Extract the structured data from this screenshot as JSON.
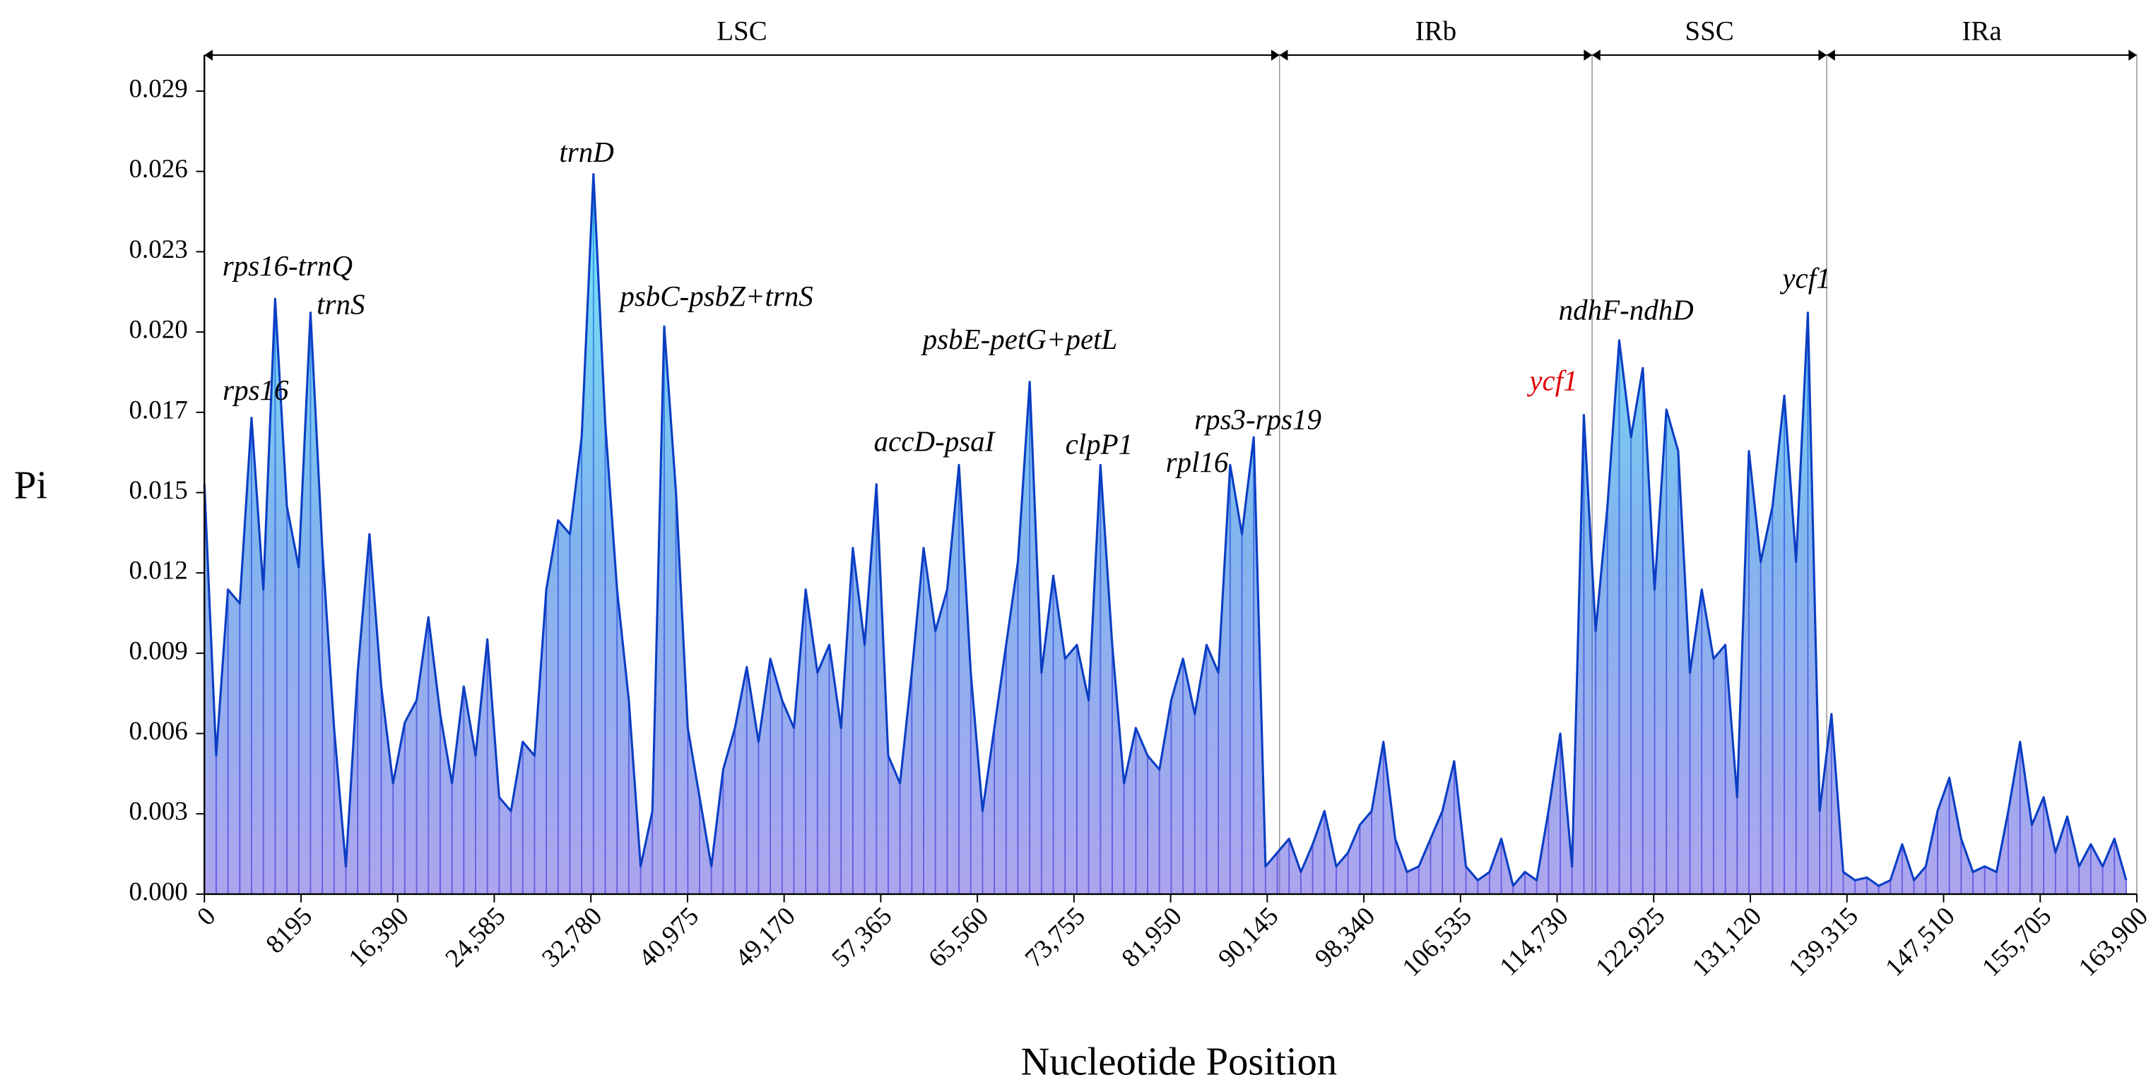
{
  "chart_data": {
    "type": "area",
    "xlabel": "Nucleotide Position",
    "ylabel": "Pi",
    "xlim": [
      0,
      163900
    ],
    "ylim": [
      0,
      0.0303
    ],
    "xticks": [
      0,
      8195,
      {
        "value": 16390,
        "label": "16,390"
      },
      {
        "value": 24585,
        "label": "24,585"
      },
      {
        "value": 32780,
        "label": "32,780"
      },
      {
        "value": 40975,
        "label": "40,975"
      },
      {
        "value": 49170,
        "label": "49,170"
      },
      {
        "value": 57365,
        "label": "57,365"
      },
      {
        "value": 65560,
        "label": "65,560"
      },
      {
        "value": 73755,
        "label": "73,755"
      },
      {
        "value": 81950,
        "label": "81,950"
      },
      {
        "value": 90145,
        "label": "90,145"
      },
      {
        "value": 98340,
        "label": "98,340"
      },
      {
        "value": 106535,
        "label": "106,535"
      },
      {
        "value": 114730,
        "label": "114,730"
      },
      {
        "value": 122925,
        "label": "122,925"
      },
      {
        "value": 131120,
        "label": "131,120"
      },
      {
        "value": 139315,
        "label": "139,315"
      },
      {
        "value": 147510,
        "label": "147,510"
      },
      {
        "value": 155705,
        "label": "155,705"
      },
      {
        "value": 163900,
        "label": "163,900"
      }
    ],
    "yticks": [
      {
        "value": 0,
        "label": "0.000"
      },
      {
        "value": 0.0029,
        "label": "0.003"
      },
      {
        "value": 0.0058,
        "label": "0.006"
      },
      {
        "value": 0.0087,
        "label": "0.009"
      },
      {
        "value": 0.0116,
        "label": "0.012"
      },
      {
        "value": 0.0145,
        "label": "0.015"
      },
      {
        "value": 0.0174,
        "label": "0.017"
      },
      {
        "value": 0.0203,
        "label": "0.020"
      },
      {
        "value": 0.0232,
        "label": "0.023"
      },
      {
        "value": 0.0261,
        "label": "0.026"
      },
      0.029
    ],
    "regions": [
      {
        "name": "LSC",
        "start": 0,
        "end": 91186
      },
      {
        "name": "IRb",
        "start": 91186,
        "end": 117700
      },
      {
        "name": "SSC",
        "start": 117700,
        "end": 137600
      },
      {
        "name": "IRa",
        "start": 137600,
        "end": 163900
      }
    ],
    "x": [
      0,
      1000,
      2000,
      3000,
      4000,
      5000,
      6000,
      7000,
      8000,
      9000,
      10000,
      11000,
      12000,
      13000,
      14000,
      15000,
      16000,
      17000,
      18000,
      19000,
      20000,
      21000,
      22000,
      23000,
      24000,
      25000,
      26000,
      27000,
      28000,
      29000,
      30000,
      31000,
      32000,
      33000,
      34000,
      35000,
      36000,
      37000,
      38000,
      39000,
      40000,
      41000,
      42000,
      43000,
      44000,
      45000,
      46000,
      47000,
      48000,
      49000,
      50000,
      51000,
      52000,
      53000,
      54000,
      55000,
      56000,
      57000,
      58000,
      59000,
      60000,
      61000,
      62000,
      63000,
      64000,
      65000,
      66000,
      67000,
      68000,
      69000,
      70000,
      71000,
      72000,
      73000,
      74000,
      75000,
      76000,
      77000,
      78000,
      79000,
      80000,
      81000,
      82000,
      83000,
      84000,
      85000,
      86000,
      87000,
      88000,
      89000,
      90000,
      91000,
      92000,
      93000,
      94000,
      95000,
      96000,
      97000,
      98000,
      99000,
      100000,
      101000,
      102000,
      103000,
      104000,
      105000,
      106000,
      107000,
      108000,
      109000,
      110000,
      111000,
      112000,
      113000,
      114000,
      115000,
      116000,
      117000,
      118000,
      119000,
      120000,
      121000,
      122000,
      123000,
      124000,
      125000,
      126000,
      127000,
      128000,
      129000,
      130000,
      131000,
      132000,
      133000,
      134000,
      135000,
      136000,
      137000,
      138000,
      139000,
      140000,
      141000,
      142000,
      143000,
      144000,
      145000,
      146000,
      147000,
      148000,
      149000,
      150000,
      151000,
      152000,
      153000,
      154000,
      155000,
      156000,
      157000,
      158000,
      159000,
      160000,
      161000,
      162000,
      163000
    ],
    "series": [
      {
        "color": "#0b3ec4",
        "values": [
          0.0148,
          0.005,
          0.011,
          0.0105,
          0.0172,
          0.011,
          0.0215,
          0.014,
          0.0118,
          0.021,
          0.0125,
          0.006,
          0.001,
          0.008,
          0.013,
          0.0075,
          0.004,
          0.0062,
          0.007,
          0.01,
          0.0065,
          0.004,
          0.0075,
          0.005,
          0.0092,
          0.0035,
          0.003,
          0.0055,
          0.005,
          0.011,
          0.0135,
          0.013,
          0.0165,
          0.026,
          0.017,
          0.011,
          0.007,
          0.001,
          0.003,
          0.0205,
          0.0145,
          0.006,
          0.0035,
          0.001,
          0.0045,
          0.006,
          0.0082,
          0.0055,
          0.0085,
          0.007,
          0.006,
          0.011,
          0.008,
          0.009,
          0.006,
          0.0125,
          0.009,
          0.0148,
          0.005,
          0.004,
          0.008,
          0.0125,
          0.0095,
          0.011,
          0.0155,
          0.008,
          0.003,
          0.006,
          0.009,
          0.012,
          0.0185,
          0.008,
          0.0115,
          0.0085,
          0.009,
          0.007,
          0.0155,
          0.009,
          0.004,
          0.006,
          0.005,
          0.0045,
          0.007,
          0.0085,
          0.0065,
          0.009,
          0.008,
          0.0155,
          0.013,
          0.0165,
          0.001,
          0.0015,
          0.002,
          0.0008,
          0.0018,
          0.003,
          0.001,
          0.0015,
          0.0025,
          0.003,
          0.0055,
          0.002,
          0.0008,
          0.001,
          0.002,
          0.003,
          0.0048,
          0.001,
          0.0005,
          0.0008,
          0.002,
          0.0003,
          0.0008,
          0.0005,
          0.003,
          0.0058,
          0.001,
          0.0173,
          0.0095,
          0.014,
          0.02,
          0.0165,
          0.019,
          0.011,
          0.0175,
          0.016,
          0.008,
          0.011,
          0.0085,
          0.009,
          0.0035,
          0.016,
          0.012,
          0.014,
          0.018,
          0.012,
          0.021,
          0.003,
          0.0065,
          0.0008,
          0.0005,
          0.0006,
          0.0003,
          0.0005,
          0.0018,
          0.0005,
          0.001,
          0.003,
          0.0042,
          0.002,
          0.0008,
          0.001,
          0.0008,
          0.003,
          0.0055,
          0.0025,
          0.0035,
          0.0015,
          0.0028,
          0.001,
          0.0018,
          0.001,
          0.002,
          0.0005
        ]
      }
    ],
    "annotations": [
      {
        "text": "rps16",
        "x": 4000
      },
      {
        "text": "rps16-trnQ",
        "x": 6000
      },
      {
        "text": "trnS",
        "x": 9000
      },
      {
        "text": "trnD",
        "x": 33000
      },
      {
        "text": "psbC-psbZ+trnS",
        "x": 39000
      },
      {
        "text": "accD-psaI",
        "x": 64000
      },
      {
        "text": "psbE-petG+petL",
        "x": 70000
      },
      {
        "text": "clpP1",
        "x": 76000
      },
      {
        "text": "rpl16",
        "x": 87000
      },
      {
        "text": "rps3-rps19",
        "x": 89000
      },
      {
        "text": "ycf1",
        "x": 117000,
        "color": "#e00000"
      },
      {
        "text": "ndhF-ndhD",
        "x": 120000
      },
      {
        "text": "ycf1",
        "x": 136000
      }
    ]
  }
}
